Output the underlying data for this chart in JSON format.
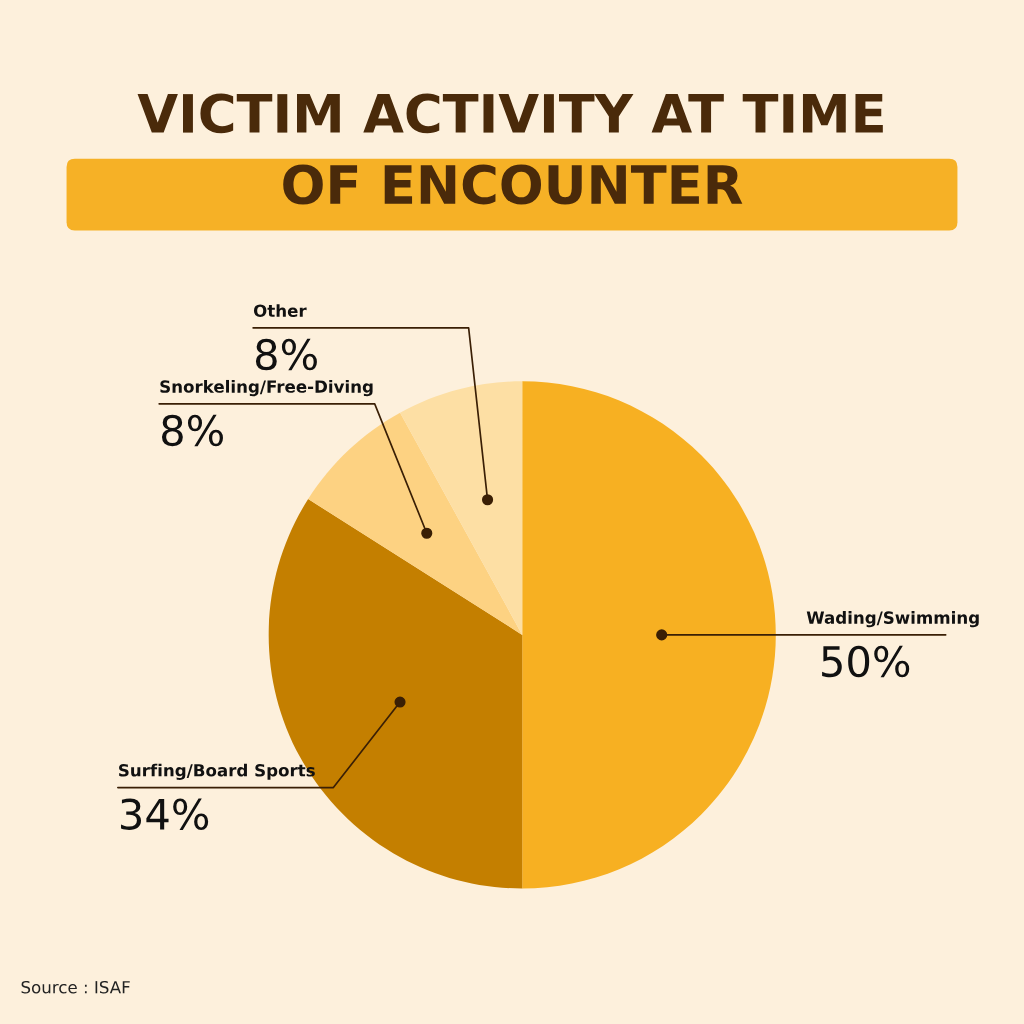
{
  "chart_data": {
    "type": "pie",
    "title": "VICTIM ACTIVITY AT TIME\nOF ENCOUNTER",
    "categories": [
      "Wading/Swimming",
      "Surfing/Board Sports",
      "Snorkeling/Free-Diving",
      "Other"
    ],
    "values": [
      50,
      34,
      8,
      8
    ],
    "value_labels": [
      "50%",
      "34%",
      "8%",
      "8%"
    ],
    "colors": [
      "#f7b022",
      "#c47f00",
      "#fdd282",
      "#fddfa4"
    ],
    "annotations": [
      "Source : ISAF"
    ]
  }
}
